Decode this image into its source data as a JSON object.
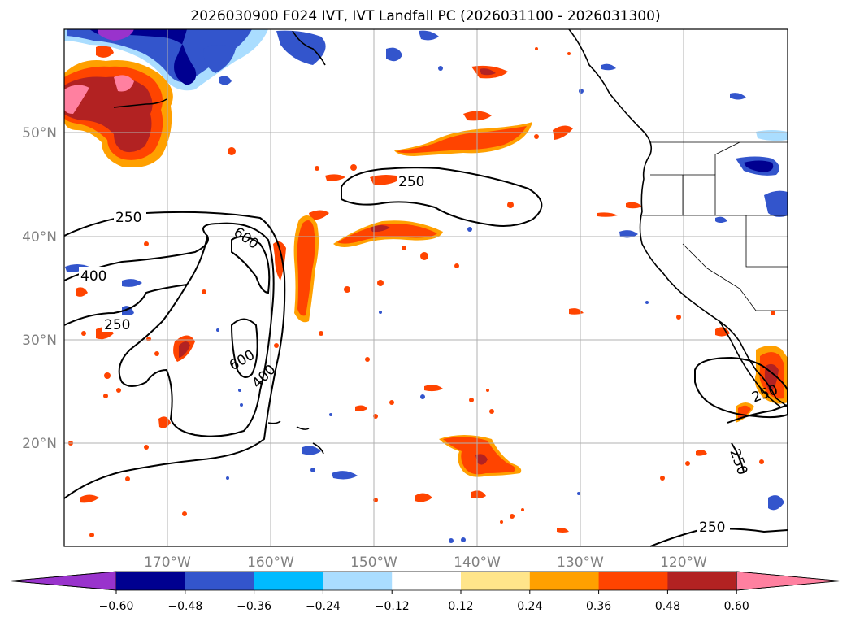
{
  "title": "2026030900 F024 IVT, IVT Landfall PC (2026031100 - 2026031300)",
  "map": {
    "lat_ticks": [
      {
        "label": "50°N"
      },
      {
        "label": "40°N"
      },
      {
        "label": "30°N"
      },
      {
        "label": "20°N"
      }
    ],
    "lon_ticks": [
      {
        "label": "170°W"
      },
      {
        "label": "160°W"
      },
      {
        "label": "150°W"
      },
      {
        "label": "140°W"
      },
      {
        "label": "130°W"
      },
      {
        "label": "120°W"
      }
    ],
    "contour_labels": [
      "250",
      "250",
      "400",
      "600",
      "250",
      "600",
      "400",
      "250",
      "250",
      "250"
    ]
  },
  "colorbar": {
    "tick_labels": [
      "−0.60",
      "−0.48",
      "−0.36",
      "−0.24",
      "−0.12",
      "0.12",
      "0.24",
      "0.36",
      "0.48",
      "0.60"
    ],
    "colors": [
      "#9933cc",
      "#000090",
      "#3355cc",
      "#00bbff",
      "#aaddff",
      "#ffffff",
      "#ffe58a",
      "#ffa000",
      "#ff4400",
      "#b22222",
      "#ff80a0"
    ]
  }
}
